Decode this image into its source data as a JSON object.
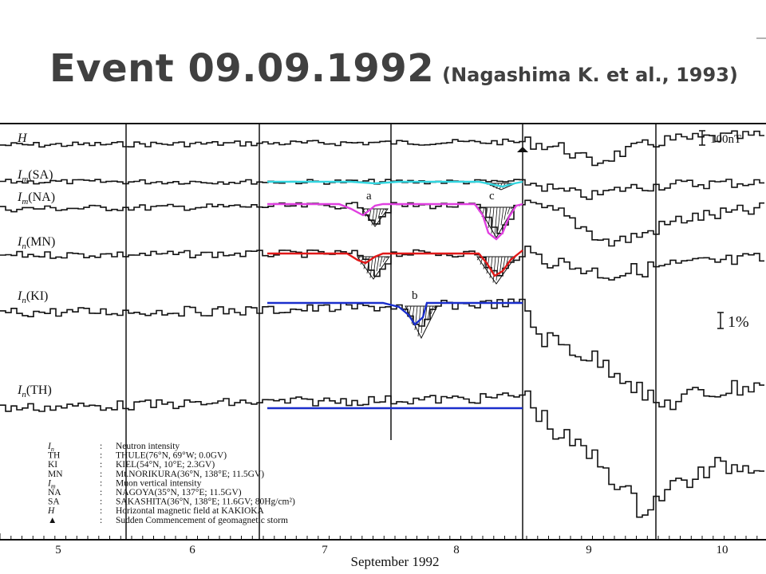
{
  "title": {
    "main": "Event 09.09.1992",
    "reference": "(Nagashima K. et al., 1993)"
  },
  "chart_data": {
    "type": "line",
    "xlabel": "September 1992",
    "x_ticks": [
      "5",
      "6",
      "7",
      "8",
      "9",
      "10"
    ],
    "series": [
      {
        "name": "H",
        "sub": "",
        "tag": ""
      },
      {
        "name": "I",
        "sub": "m",
        "tag": "(SA)"
      },
      {
        "name": "I",
        "sub": "m",
        "tag": "(NA)"
      },
      {
        "name": "I",
        "sub": "n",
        "tag": "(MN)"
      },
      {
        "name": "I",
        "sub": "n",
        "tag": "(KI)"
      },
      {
        "name": "I",
        "sub": "n",
        "tag": "(TH)"
      }
    ],
    "scale_labels": {
      "magnetic": "100nT",
      "intensity": "1%"
    },
    "annotations": [
      "a",
      "b",
      "c"
    ],
    "legend": [
      {
        "key": "I",
        "sub": "n",
        "text": "Neutron intensity"
      },
      {
        "key": "TH",
        "sub": "",
        "text": "THULE(76°N, 69°W; 0.0GV)"
      },
      {
        "key": "KI",
        "sub": "",
        "text": "KIEL(54°N, 10°E; 2.3GV)"
      },
      {
        "key": "MN",
        "sub": "",
        "text": "Mt.NORIKURA(36°N, 138°E; 11.5GV)"
      },
      {
        "key": "I",
        "sub": "m",
        "text": "Muon vertical intensity"
      },
      {
        "key": "NA",
        "sub": "",
        "text": "NAGOYA(35°N, 137°E; 11.5GV)"
      },
      {
        "key": "SA",
        "sub": "",
        "text": "SAKASHITA(36°N, 138°E; 11.6GV; 80Hg/cm²)"
      },
      {
        "key": "H",
        "sub": "",
        "text": "Horizontal magnetic field at KAKIOKA"
      },
      {
        "key": "▲",
        "sub": "",
        "text": "Sudden Commencement of geomagnetic storm"
      }
    ],
    "colors": {
      "ink": "#111111",
      "SA_overlay": "#33d6e0",
      "NA_overlay": "#e040e0",
      "MN_overlay": "#e01818",
      "KI_overlay": "#1a2ecc",
      "TH_overlay": "#1a2ecc",
      "title": "#404040"
    }
  }
}
